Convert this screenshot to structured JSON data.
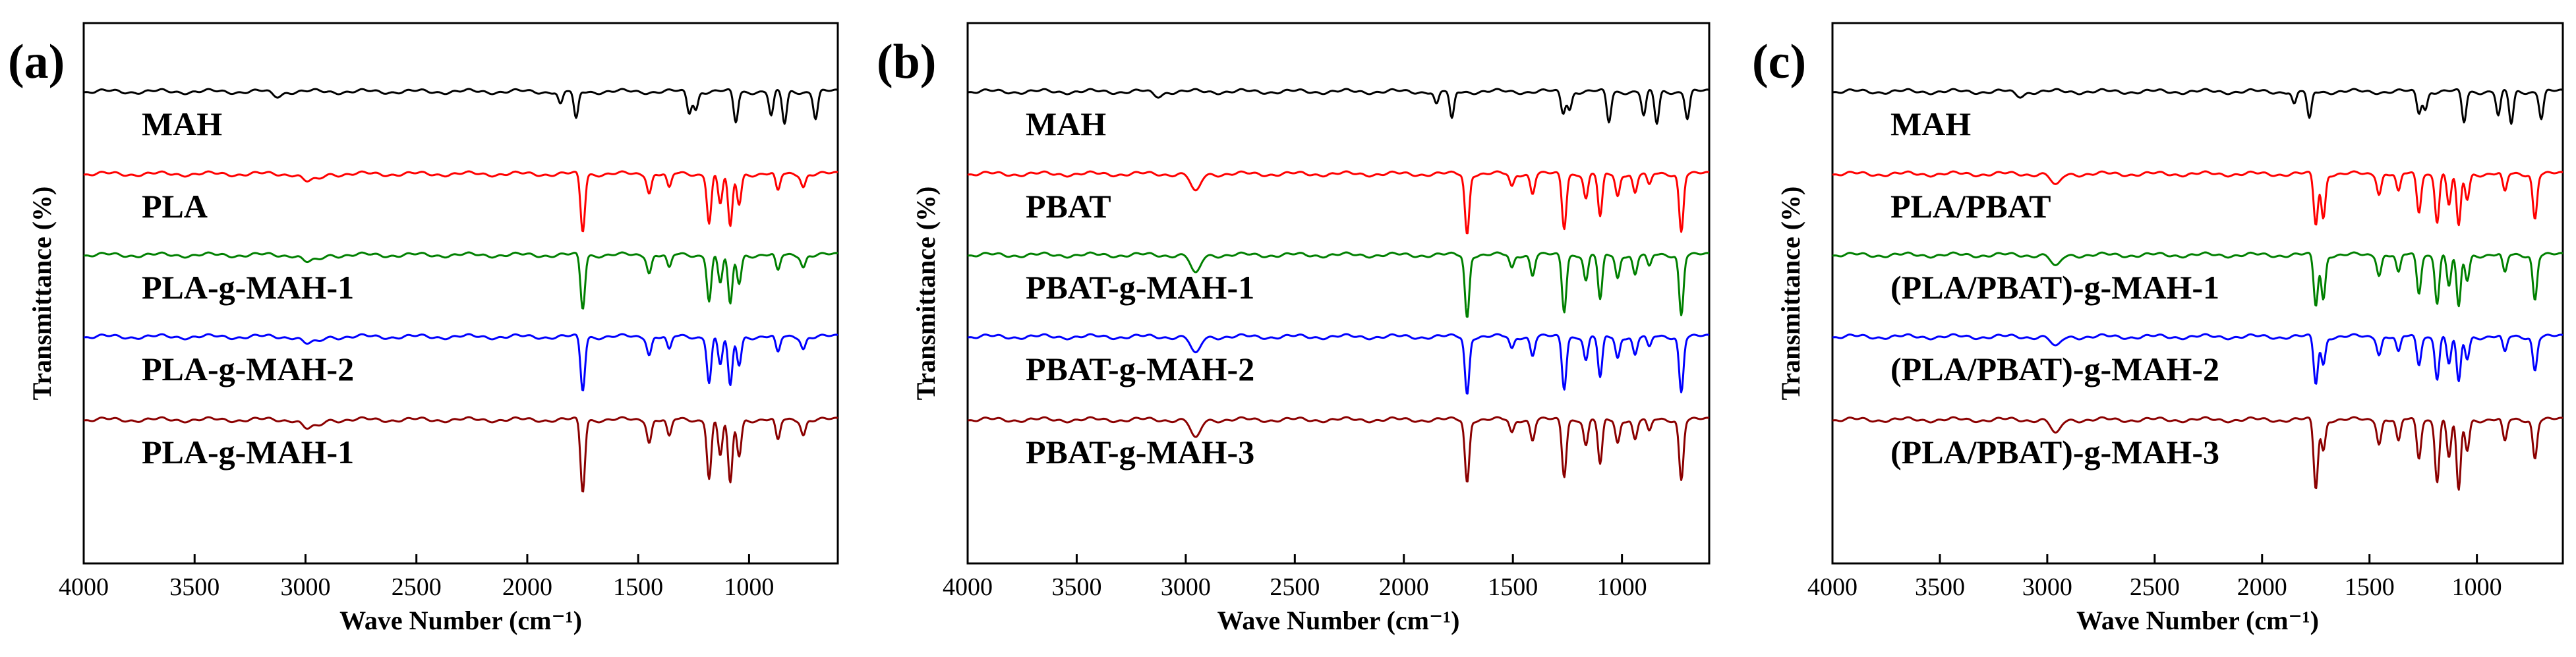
{
  "chart_data": [
    {
      "type": "line",
      "panel_label": "(a)",
      "xlabel": "Wave Number (cm⁻¹)",
      "ylabel": "Transmittance (%)",
      "xlim": [
        4000,
        600
      ],
      "xticks": [
        4000,
        3500,
        3000,
        2500,
        2000,
        1500,
        1000
      ],
      "series": [
        {
          "name": "MAH",
          "color": "#000000",
          "peaks": [
            [
              3130,
              0.12
            ],
            [
              1850,
              0.35
            ],
            [
              1780,
              0.75
            ],
            [
              1270,
              0.55
            ],
            [
              1240,
              0.45
            ],
            [
              1060,
              0.8
            ],
            [
              900,
              0.65
            ],
            [
              840,
              0.85
            ],
            [
              700,
              0.7
            ]
          ]
        },
        {
          "name": "PLA",
          "color": "#ff0000",
          "peaks": [
            [
              2995,
              0.12
            ],
            [
              2945,
              0.1
            ],
            [
              1750,
              0.95
            ],
            [
              1450,
              0.3
            ],
            [
              1360,
              0.25
            ],
            [
              1180,
              0.8
            ],
            [
              1130,
              0.5
            ],
            [
              1085,
              0.9
            ],
            [
              1045,
              0.5
            ],
            [
              870,
              0.3
            ],
            [
              755,
              0.2
            ]
          ]
        },
        {
          "name": "PLA-g-MAH-1",
          "color": "#008000",
          "peaks": [
            [
              2995,
              0.12
            ],
            [
              2945,
              0.1
            ],
            [
              1750,
              0.95
            ],
            [
              1450,
              0.3
            ],
            [
              1360,
              0.25
            ],
            [
              1180,
              0.8
            ],
            [
              1130,
              0.5
            ],
            [
              1085,
              0.9
            ],
            [
              1045,
              0.5
            ],
            [
              870,
              0.3
            ],
            [
              755,
              0.2
            ]
          ]
        },
        {
          "name": "PLA-g-MAH-2",
          "color": "#0000ff",
          "peaks": [
            [
              2995,
              0.12
            ],
            [
              2945,
              0.1
            ],
            [
              1750,
              0.95
            ],
            [
              1450,
              0.3
            ],
            [
              1360,
              0.25
            ],
            [
              1180,
              0.8
            ],
            [
              1130,
              0.5
            ],
            [
              1085,
              0.9
            ],
            [
              1045,
              0.5
            ],
            [
              870,
              0.3
            ],
            [
              755,
              0.2
            ]
          ]
        },
        {
          "name": "PLA-g-MAH-1",
          "color": "#8b0000",
          "peaks": [
            [
              2995,
              0.12
            ],
            [
              2945,
              0.1
            ],
            [
              1750,
              1.0
            ],
            [
              1450,
              0.3
            ],
            [
              1360,
              0.25
            ],
            [
              1180,
              0.8
            ],
            [
              1130,
              0.5
            ],
            [
              1085,
              0.9
            ],
            [
              1045,
              0.5
            ],
            [
              870,
              0.3
            ],
            [
              755,
              0.2
            ]
          ]
        }
      ]
    },
    {
      "type": "line",
      "panel_label": "(b)",
      "xlabel": "Wave Number (cm⁻¹)",
      "ylabel": "Transmittance (%)",
      "xlim": [
        4000,
        600
      ],
      "xticks": [
        4000,
        3500,
        3000,
        2500,
        2000,
        1500,
        1000
      ],
      "series": [
        {
          "name": "MAH",
          "color": "#000000",
          "peaks": [
            [
              3130,
              0.12
            ],
            [
              1850,
              0.35
            ],
            [
              1780,
              0.75
            ],
            [
              1270,
              0.55
            ],
            [
              1240,
              0.45
            ],
            [
              1060,
              0.8
            ],
            [
              900,
              0.65
            ],
            [
              840,
              0.85
            ],
            [
              700,
              0.7
            ]
          ]
        },
        {
          "name": "PBAT",
          "color": "#ff0000",
          "peaks": [
            [
              2955,
              0.3
            ],
            [
              1710,
              0.95
            ],
            [
              1505,
              0.2
            ],
            [
              1410,
              0.3
            ],
            [
              1265,
              0.85
            ],
            [
              1165,
              0.4
            ],
            [
              1100,
              0.7
            ],
            [
              1020,
              0.35
            ],
            [
              940,
              0.3
            ],
            [
              875,
              0.2
            ],
            [
              728,
              0.9
            ]
          ]
        },
        {
          "name": "PBAT-g-MAH-1",
          "color": "#008000",
          "peaks": [
            [
              2955,
              0.3
            ],
            [
              1710,
              0.95
            ],
            [
              1505,
              0.2
            ],
            [
              1410,
              0.3
            ],
            [
              1265,
              0.85
            ],
            [
              1165,
              0.4
            ],
            [
              1100,
              0.7
            ],
            [
              1020,
              0.35
            ],
            [
              940,
              0.3
            ],
            [
              875,
              0.2
            ],
            [
              728,
              0.9
            ]
          ]
        },
        {
          "name": "PBAT-g-MAH-2",
          "color": "#0000ff",
          "peaks": [
            [
              2955,
              0.3
            ],
            [
              1710,
              0.95
            ],
            [
              1505,
              0.2
            ],
            [
              1410,
              0.3
            ],
            [
              1265,
              0.85
            ],
            [
              1165,
              0.4
            ],
            [
              1100,
              0.7
            ],
            [
              1020,
              0.35
            ],
            [
              940,
              0.3
            ],
            [
              875,
              0.2
            ],
            [
              728,
              0.9
            ]
          ]
        },
        {
          "name": "PBAT-g-MAH-3",
          "color": "#8b0000",
          "peaks": [
            [
              2955,
              0.3
            ],
            [
              1710,
              0.95
            ],
            [
              1505,
              0.2
            ],
            [
              1410,
              0.3
            ],
            [
              1265,
              0.85
            ],
            [
              1165,
              0.4
            ],
            [
              1100,
              0.7
            ],
            [
              1020,
              0.35
            ],
            [
              940,
              0.3
            ],
            [
              875,
              0.2
            ],
            [
              728,
              0.9
            ]
          ]
        }
      ]
    },
    {
      "type": "line",
      "panel_label": "(c)",
      "xlabel": "Wave Number (cm⁻¹)",
      "ylabel": "Transmittance (%)",
      "xlim": [
        4000,
        600
      ],
      "xticks": [
        4000,
        3500,
        3000,
        2500,
        2000,
        1500,
        1000
      ],
      "series": [
        {
          "name": "MAH",
          "color": "#000000",
          "peaks": [
            [
              3130,
              0.12
            ],
            [
              1850,
              0.35
            ],
            [
              1780,
              0.75
            ],
            [
              1270,
              0.55
            ],
            [
              1240,
              0.45
            ],
            [
              1060,
              0.8
            ],
            [
              900,
              0.65
            ],
            [
              840,
              0.85
            ],
            [
              700,
              0.7
            ]
          ]
        },
        {
          "name": "PLA/PBAT",
          "color": "#ff0000",
          "peaks": [
            [
              2960,
              0.2
            ],
            [
              1750,
              0.8
            ],
            [
              1715,
              0.7
            ],
            [
              1455,
              0.3
            ],
            [
              1365,
              0.3
            ],
            [
              1270,
              0.6
            ],
            [
              1185,
              0.75
            ],
            [
              1130,
              0.5
            ],
            [
              1085,
              0.85
            ],
            [
              1045,
              0.4
            ],
            [
              870,
              0.3
            ],
            [
              730,
              0.7
            ]
          ]
        },
        {
          "name": "(PLA/PBAT)-g-MAH-1",
          "color": "#008000",
          "peaks": [
            [
              2960,
              0.2
            ],
            [
              1750,
              0.8
            ],
            [
              1715,
              0.7
            ],
            [
              1455,
              0.3
            ],
            [
              1365,
              0.3
            ],
            [
              1270,
              0.6
            ],
            [
              1185,
              0.75
            ],
            [
              1130,
              0.5
            ],
            [
              1085,
              0.85
            ],
            [
              1045,
              0.4
            ],
            [
              870,
              0.3
            ],
            [
              730,
              0.7
            ]
          ]
        },
        {
          "name": "(PLA/PBAT)-g-MAH-2",
          "color": "#0000ff",
          "peaks": [
            [
              2960,
              0.2
            ],
            [
              1750,
              0.85
            ],
            [
              1715,
              0.5
            ],
            [
              1455,
              0.3
            ],
            [
              1365,
              0.3
            ],
            [
              1270,
              0.5
            ],
            [
              1185,
              0.75
            ],
            [
              1130,
              0.5
            ],
            [
              1085,
              0.85
            ],
            [
              1045,
              0.4
            ],
            [
              870,
              0.3
            ],
            [
              730,
              0.6
            ]
          ]
        },
        {
          "name": "(PLA/PBAT)-g-MAH-3",
          "color": "#8b0000",
          "peaks": [
            [
              2960,
              0.2
            ],
            [
              1750,
              0.9
            ],
            [
              1715,
              0.4
            ],
            [
              1455,
              0.3
            ],
            [
              1365,
              0.3
            ],
            [
              1270,
              0.5
            ],
            [
              1185,
              0.8
            ],
            [
              1130,
              0.5
            ],
            [
              1085,
              0.95
            ],
            [
              1045,
              0.4
            ],
            [
              870,
              0.3
            ],
            [
              730,
              0.5
            ]
          ]
        }
      ]
    }
  ]
}
